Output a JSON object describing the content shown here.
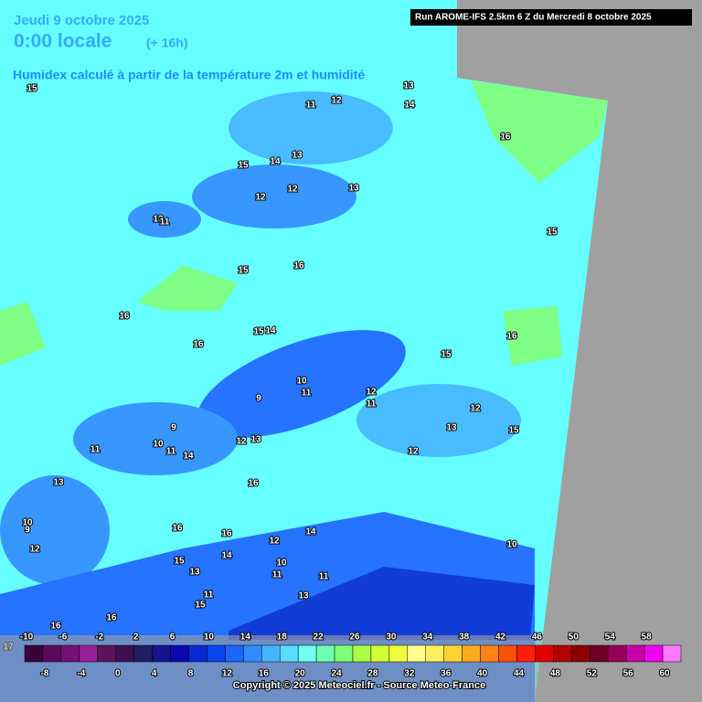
{
  "header": {
    "date": "Jeudi 9 octobre 2025",
    "time": "0:00 locale",
    "lead": "(+ 16h)",
    "subtitle": "Humidex calculé à partir de la température 2m et humidité",
    "run": "Run AROME-IFS 2.5km 6 Z du Mercredi 8 octobre 2025"
  },
  "map": {
    "labels": [
      15,
      13,
      14,
      11,
      12,
      16,
      15,
      14,
      13,
      12,
      12,
      13,
      13,
      11,
      15,
      15,
      16,
      16,
      15,
      14,
      16,
      15,
      16,
      10,
      11,
      9,
      12,
      11,
      12,
      9,
      13,
      15,
      10,
      11,
      14,
      12,
      13,
      12,
      11,
      16,
      13,
      10,
      9,
      12,
      16,
      16,
      12,
      14,
      10,
      15,
      14,
      10,
      11,
      11,
      13,
      11,
      15,
      13,
      16,
      16,
      17
    ]
  },
  "colorbar": {
    "ticks": [
      -10,
      -8,
      -6,
      -4,
      -2,
      0,
      2,
      4,
      6,
      8,
      10,
      12,
      14,
      16,
      18,
      20,
      22,
      24,
      26,
      28,
      30,
      32,
      34,
      36,
      38,
      40,
      42,
      44,
      46,
      48,
      50,
      52,
      54,
      56,
      58,
      60
    ],
    "colors": [
      "#3c003c",
      "#5a0a5a",
      "#780f78",
      "#961e96",
      "#5a145a",
      "#3c0f50",
      "#1e1e64",
      "#14148c",
      "#0a0ab4",
      "#0a28d2",
      "#0a46f0",
      "#1e64ff",
      "#328cff",
      "#46b4ff",
      "#5adcff",
      "#6efff0",
      "#6effb4",
      "#82ff78",
      "#aaff46",
      "#d2ff32",
      "#f0ff3c",
      "#ffff8c",
      "#fff05a",
      "#ffd232",
      "#ffaa1e",
      "#ff8214",
      "#ff500a",
      "#ff1e0a",
      "#e10000",
      "#b40000",
      "#8c0000",
      "#6e0028",
      "#96005a",
      "#c800aa",
      "#f000f0",
      "#ff78ff"
    ]
  },
  "footer": {
    "copyright": "Copyright © 2025 Meteociel.fr - Source Meteo-France"
  }
}
